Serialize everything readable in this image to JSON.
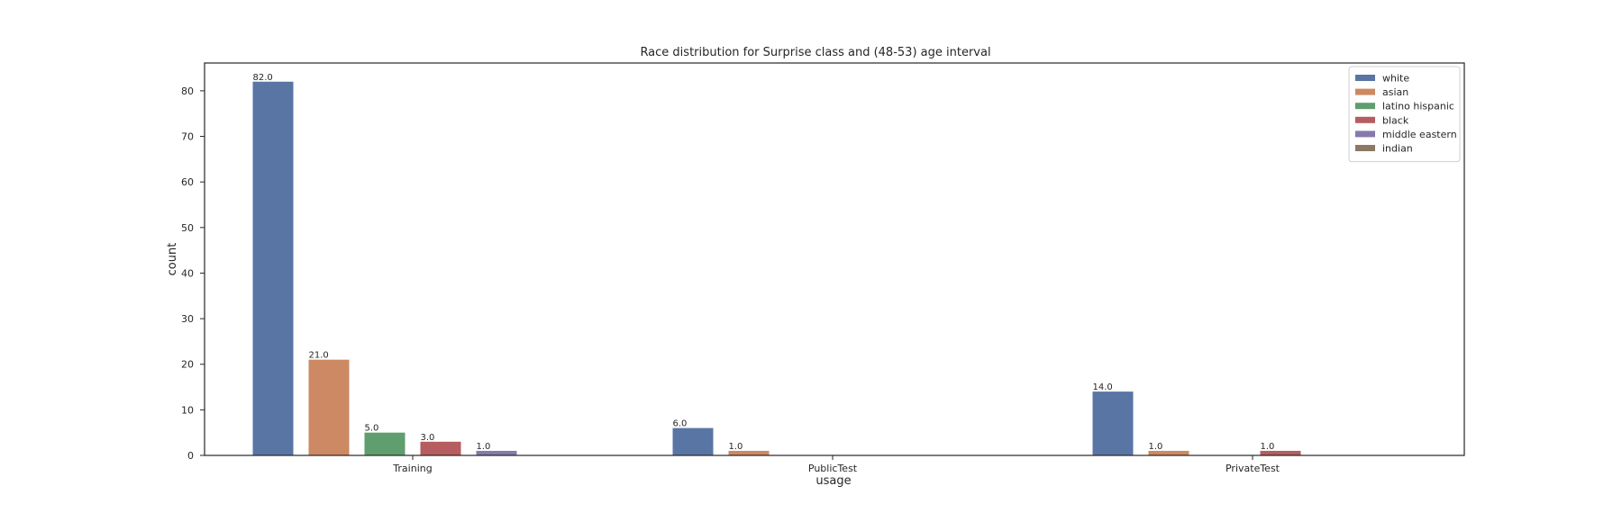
{
  "chart_data": {
    "type": "bar",
    "title": "Race distribution for Surprise class and (48-53) age interval",
    "xlabel": "usage",
    "ylabel": "count",
    "categories": [
      "Training",
      "PublicTest",
      "PrivateTest"
    ],
    "ylim": [
      0,
      86.1
    ],
    "yticks": [
      0,
      10,
      20,
      30,
      40,
      50,
      60,
      70,
      80
    ],
    "grid": false,
    "legend_position": "top-right",
    "series": [
      {
        "name": "white",
        "color": "#5875a4",
        "values": [
          82,
          6,
          14
        ],
        "labels": [
          "82.0",
          "6.0",
          "14.0"
        ]
      },
      {
        "name": "asian",
        "color": "#cc8963",
        "values": [
          21,
          1,
          1
        ],
        "labels": [
          "21.0",
          "1.0",
          "1.0"
        ]
      },
      {
        "name": "latino hispanic",
        "color": "#5f9e6e",
        "values": [
          5,
          0,
          0
        ],
        "labels": [
          "5.0",
          "",
          ""
        ]
      },
      {
        "name": "black",
        "color": "#b55d60",
        "values": [
          3,
          0,
          1
        ],
        "labels": [
          "3.0",
          "",
          "1.0"
        ]
      },
      {
        "name": "middle eastern",
        "color": "#857aab",
        "values": [
          1,
          0,
          0
        ],
        "labels": [
          "1.0",
          "",
          ""
        ]
      },
      {
        "name": "indian",
        "color": "#8d7866",
        "values": [
          0,
          0,
          0
        ],
        "labels": [
          "",
          "",
          ""
        ]
      }
    ]
  }
}
